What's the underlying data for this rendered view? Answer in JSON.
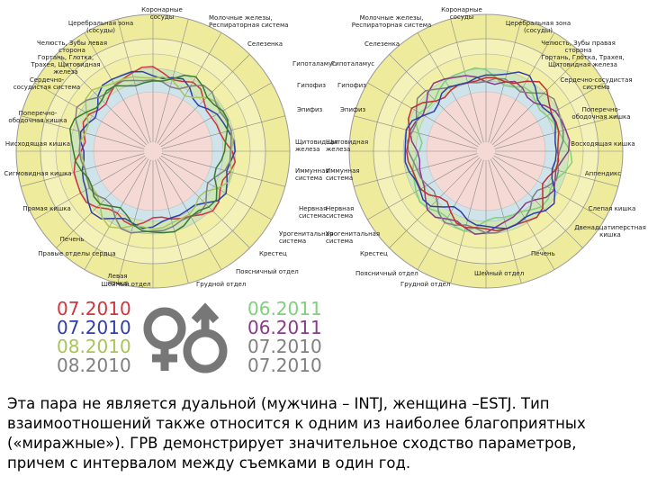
{
  "diagrams": [
    {
      "labels": [
        "Коронарные сосуды",
        "Церебральная зона (сосуды)",
        "Молочные железы, Респираторная система",
        "Челюсть, Зубы левая сторона",
        "Селезенка",
        "Гортань, Глотка, Трахея, Щитовидная железа",
        "Гипоталамус",
        "Сердечно-сосудистая система",
        "Гипофиз",
        "Поперечно-ободочная кишка",
        "Эпифиз",
        "Нисходящая кишка",
        "Щитовидная железа",
        "Сигмовидная кишка",
        "Иммунная система",
        "Прямая кишка",
        "Нервная система",
        "Печень",
        "Урогенитальная система",
        "Правые отделы сердца",
        "Крестец",
        "Поясничный отдел",
        "Левая почка",
        "Шейный отдел",
        "Грудной отдел"
      ]
    },
    {
      "labels": [
        "Коронарные сосуды",
        "Молочные железы, Респираторная система",
        "Церебральная зона (сосуды)",
        "Селезенка",
        "Челюсть, Зубы правая сторона",
        "Гипоталамус",
        "Гортань, Глотка, Трахея, Щитовидная железа",
        "Гипофиз",
        "Сердечно-сосудистая система",
        "Эпифиз",
        "Поперечно-ободочная кишка",
        "Щитовидная железа",
        "Восходящая кишка",
        "Иммунная система",
        "Аппендикс",
        "Нервная система",
        "Слепая кишка",
        "Урогенитальная система",
        "Двенадцатиперстная кишка",
        "Крестец",
        "Печень",
        "Поясничный отдел",
        "Шейный отдел",
        "Грудной отдел"
      ]
    }
  ],
  "legend_left": [
    {
      "text": "07.2010",
      "color": "#d0343c"
    },
    {
      "text": "07.2010",
      "color": "#2f3fa8"
    },
    {
      "text": "08.2010",
      "color": "#a8c45a"
    },
    {
      "text": "08.2010",
      "color": "#808080"
    }
  ],
  "legend_right": [
    {
      "text": "06.2011",
      "color": "#7ed07a"
    },
    {
      "text": "06.2011",
      "color": "#8a3a8a"
    },
    {
      "text": "07.2010",
      "color": "#808080"
    },
    {
      "text": "07.2010",
      "color": "#808080"
    }
  ],
  "paragraph": [
    "Эта пара не является дуальной (мужчина – INTJ, женщина –ESTJ. Тип",
    "взаимоотношений также относится к одним из наиболее благоприятных",
    "(«миражные»). ГРВ демонстрирует значительное сходство параметров,",
    "причем с интервалом между съемками в один год."
  ]
}
